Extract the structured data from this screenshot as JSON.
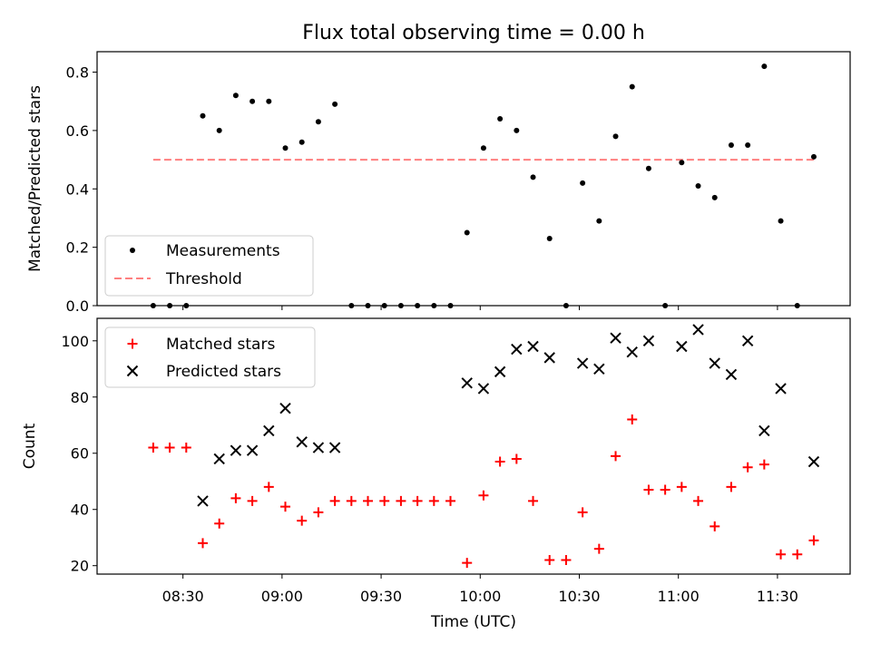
{
  "chart_data": [
    {
      "type": "scatter",
      "title": "Flux total observing time = 0.00 h",
      "ylabel": "Matched/Predicted stars",
      "ylim": [
        0.0,
        0.87
      ],
      "yticks": [
        "0.0",
        "0.2",
        "0.4",
        "0.6",
        "0.8"
      ],
      "legend_position": "lower-left",
      "series": [
        {
          "name": "Measurements",
          "marker": "dot",
          "color": "#000000",
          "x": [
            "08:21",
            "08:26",
            "08:31",
            "08:36",
            "08:41",
            "08:46",
            "08:51",
            "08:56",
            "09:01",
            "09:06",
            "09:11",
            "09:16",
            "09:21",
            "09:26",
            "09:31",
            "09:36",
            "09:41",
            "09:46",
            "09:51",
            "09:56",
            "10:01",
            "10:06",
            "10:11",
            "10:16",
            "10:21",
            "10:26",
            "10:31",
            "10:36",
            "10:41",
            "10:46",
            "10:51",
            "10:56",
            "11:01",
            "11:06",
            "11:11",
            "11:16",
            "11:21",
            "11:26",
            "11:31",
            "11:36",
            "11:41"
          ],
          "y": [
            0.0,
            0.0,
            0.0,
            0.65,
            0.6,
            0.72,
            0.7,
            0.7,
            0.54,
            0.56,
            0.63,
            0.69,
            0.0,
            0.0,
            0.0,
            0.0,
            0.0,
            0.0,
            0.0,
            0.25,
            0.54,
            0.64,
            0.6,
            0.44,
            0.23,
            0.0,
            0.42,
            0.29,
            0.58,
            0.75,
            0.47,
            0.0,
            0.49,
            0.41,
            0.37,
            0.55,
            0.55,
            0.82,
            0.29,
            0.0,
            0.51
          ]
        },
        {
          "name": "Threshold",
          "style": "dashed",
          "color": "#ff7f7f",
          "x": [
            "08:21",
            "11:41"
          ],
          "y": [
            0.5,
            0.5
          ]
        }
      ]
    },
    {
      "type": "scatter",
      "xlabel": "Time (UTC)",
      "ylabel": "Count",
      "ylim": [
        17,
        108
      ],
      "yticks": [
        "20",
        "40",
        "60",
        "80",
        "100"
      ],
      "xticks": [
        "08:30",
        "09:00",
        "09:30",
        "10:00",
        "10:30",
        "11:00",
        "11:30"
      ],
      "legend_position": "upper-left",
      "series": [
        {
          "name": "Matched stars",
          "marker": "plus",
          "color": "#ff0000",
          "x": [
            "08:21",
            "08:26",
            "08:31",
            "08:36",
            "08:41",
            "08:46",
            "08:51",
            "08:56",
            "09:01",
            "09:06",
            "09:11",
            "09:16",
            "09:21",
            "09:26",
            "09:31",
            "09:36",
            "09:41",
            "09:46",
            "09:51",
            "09:56",
            "10:01",
            "10:06",
            "10:11",
            "10:16",
            "10:21",
            "10:26",
            "10:31",
            "10:36",
            "10:41",
            "10:46",
            "10:51",
            "10:56",
            "11:01",
            "11:06",
            "11:11",
            "11:16",
            "11:21",
            "11:26",
            "11:31",
            "11:36",
            "11:41"
          ],
          "y": [
            62,
            62,
            62,
            28,
            35,
            44,
            43,
            48,
            41,
            36,
            39,
            43,
            43,
            43,
            43,
            43,
            43,
            43,
            43,
            21,
            45,
            57,
            58,
            43,
            22,
            22,
            39,
            26,
            59,
            72,
            47,
            47,
            48,
            43,
            34,
            48,
            55,
            56,
            24,
            24,
            29
          ]
        },
        {
          "name": "Predicted stars",
          "marker": "x",
          "color": "#000000",
          "x": [
            "08:36",
            "08:41",
            "08:46",
            "08:51",
            "08:56",
            "09:01",
            "09:06",
            "09:11",
            "09:16",
            "09:56",
            "10:01",
            "10:06",
            "10:11",
            "10:16",
            "10:21",
            "10:31",
            "10:36",
            "10:41",
            "10:46",
            "10:51",
            "11:01",
            "11:06",
            "11:11",
            "11:16",
            "11:21",
            "11:26",
            "11:31",
            "11:41"
          ],
          "y": [
            43,
            58,
            61,
            61,
            68,
            76,
            64,
            62,
            62,
            85,
            83,
            89,
            97,
            98,
            94,
            92,
            90,
            101,
            96,
            100,
            98,
            104,
            92,
            88,
            100,
            68,
            83,
            57
          ]
        }
      ]
    }
  ]
}
